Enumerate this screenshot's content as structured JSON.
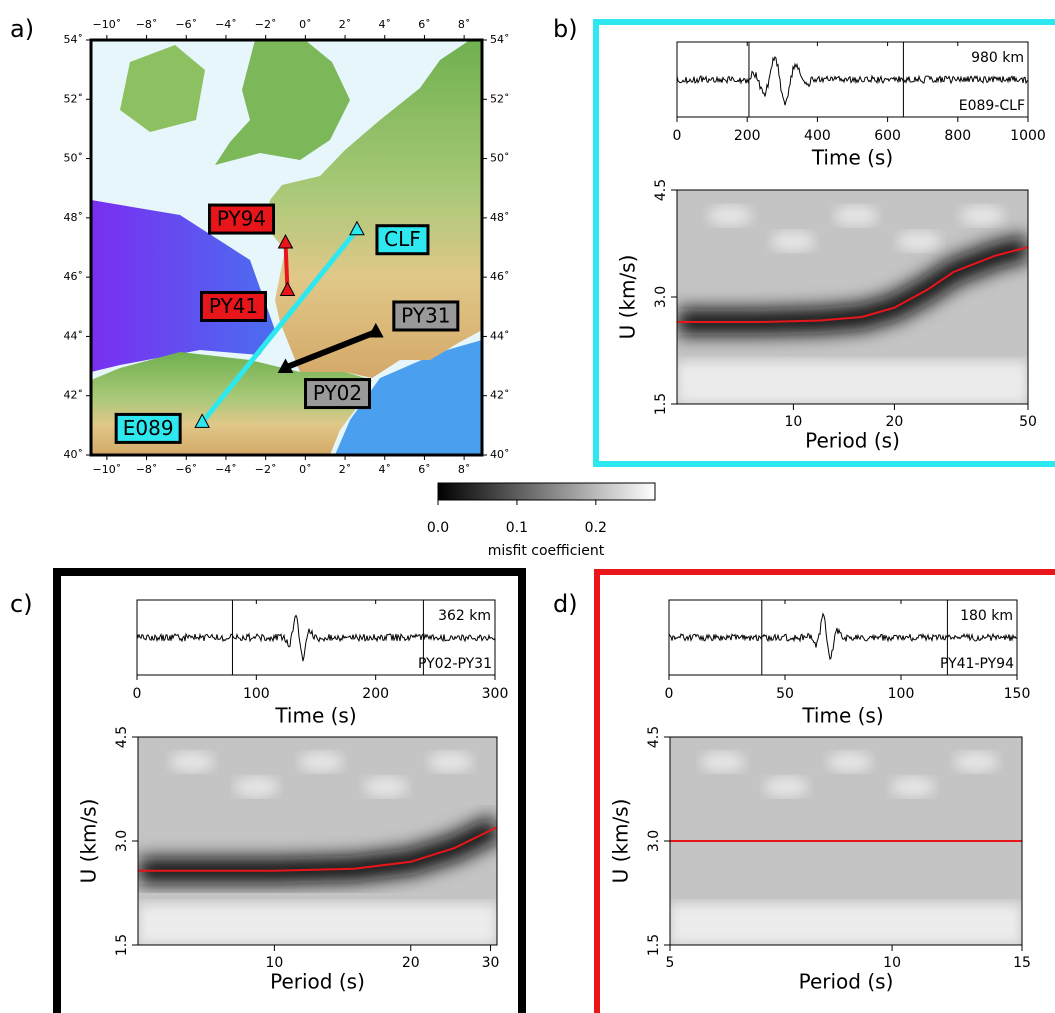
{
  "panel_labels": [
    "a)",
    "b)",
    "c)",
    "d)"
  ],
  "map": {
    "xlim": [
      -10.8,
      8.9
    ],
    "ylim": [
      40,
      54
    ],
    "xticks": [
      {
        "value": -10,
        "label": "−10˚"
      },
      {
        "value": -8,
        "label": "−8˚"
      },
      {
        "value": -6,
        "label": "−6˚"
      },
      {
        "value": -4,
        "label": "−4˚"
      },
      {
        "value": -2,
        "label": "−2˚"
      },
      {
        "value": 0,
        "label": "0˚"
      },
      {
        "value": 2,
        "label": "2˚"
      },
      {
        "value": 4,
        "label": "4˚"
      },
      {
        "value": 6,
        "label": "6˚"
      },
      {
        "value": 8,
        "label": "8˚"
      }
    ],
    "yticks": [
      {
        "value": 40,
        "label": "40˚"
      },
      {
        "value": 42,
        "label": "42˚"
      },
      {
        "value": 44,
        "label": "44˚"
      },
      {
        "value": 46,
        "label": "46˚"
      },
      {
        "value": 48,
        "label": "48˚"
      },
      {
        "value": 50,
        "label": "50˚"
      },
      {
        "value": 52,
        "label": "52˚"
      },
      {
        "value": 54,
        "label": "54˚"
      }
    ],
    "stations": [
      {
        "name": "PY94",
        "lon": -1.0,
        "lat": 47.15,
        "color": "#e8151b"
      },
      {
        "name": "PY41",
        "lon": -0.9,
        "lat": 45.55,
        "color": "#e8151b"
      },
      {
        "name": "CLF",
        "lon": 2.6,
        "lat": 47.6,
        "color": "#2ee8ef"
      },
      {
        "name": "E089",
        "lon": -5.2,
        "lat": 41.1,
        "color": "#2ee8ef"
      },
      {
        "name": "PY31",
        "lon": 3.55,
        "lat": 44.15,
        "color": "#999999"
      },
      {
        "name": "PY02",
        "lon": -1.0,
        "lat": 42.95,
        "color": "#999999"
      }
    ]
  },
  "colorbar": {
    "label": "misfit coefficient",
    "xlim": [
      0,
      0.275
    ],
    "xticks": [
      {
        "value": 0,
        "label": "0.0"
      },
      0.1,
      0.2
    ]
  },
  "panels": [
    {
      "distance": "980 km",
      "pair": "E089-CLF",
      "color": "#2ee8ef",
      "seismogram": {
        "xlabel": "Time (s)",
        "xlim": [
          0,
          1000
        ],
        "xticks": [
          0,
          200,
          400,
          600,
          800,
          1000
        ],
        "window": [
          205,
          645
        ]
      },
      "dispersion": {
        "xlabel": "Period (s)",
        "ylabel": "U (km/s)",
        "log_x": true,
        "xlim": [
          4.5,
          50
        ],
        "ylim": [
          1.5,
          4.5
        ],
        "xticks": [
          10,
          20,
          50
        ],
        "yticks": [
          1.5,
          {
            "value": 3,
            "label": "3.0"
          },
          4.5
        ],
        "curve": {
          "color": "#e8151b",
          "period": [
            4.5,
            8,
            12,
            16,
            20,
            25,
            30,
            40,
            50
          ],
          "u": [
            2.65,
            2.65,
            2.67,
            2.72,
            2.85,
            3.1,
            3.35,
            3.58,
            3.7
          ]
        }
      }
    },
    {
      "distance": "362 km",
      "pair": "PY02-PY31",
      "color": "#000000",
      "seismogram": {
        "xlabel": "Time (s)",
        "xlim": [
          0,
          300
        ],
        "xticks": [
          0,
          100,
          200,
          300
        ],
        "window": [
          80,
          240
        ]
      },
      "dispersion": {
        "xlabel": "Period (s)",
        "ylabel": "U (km/s)",
        "log_x": true,
        "xlim": [
          5,
          31
        ],
        "ylim": [
          1.5,
          4.5
        ],
        "xticks": [
          10,
          20,
          30
        ],
        "yticks": [
          1.5,
          {
            "value": 3,
            "label": "3.0"
          },
          4.5
        ],
        "curve": {
          "color": "#e8151b",
          "period": [
            5,
            10,
            15,
            20,
            25,
            31
          ],
          "u": [
            2.57,
            2.57,
            2.6,
            2.7,
            2.9,
            3.2
          ]
        }
      }
    },
    {
      "distance": "180 km",
      "pair": "PY41-PY94",
      "color": "#e8151b",
      "seismogram": {
        "xlabel": "Time (s)",
        "xlim": [
          0,
          150
        ],
        "xticks": [
          0,
          50,
          100,
          150
        ],
        "window": [
          40,
          120
        ]
      },
      "dispersion": {
        "xlabel": "Period (s)",
        "ylabel": "U (km/s)",
        "log_x": true,
        "xlim": [
          5,
          15
        ],
        "ylim": [
          1.5,
          4.5
        ],
        "xticks": [
          5,
          10,
          15
        ],
        "yticks": [
          1.5,
          {
            "value": 3,
            "label": "3.0"
          },
          4.5
        ],
        "curve": {
          "color": "#e8151b",
          "period": [
            5,
            7,
            9,
            11,
            13,
            15
          ],
          "u": [
            3.0,
            3.0,
            3.0,
            3.0,
            3.0,
            3.0
          ]
        }
      }
    }
  ]
}
